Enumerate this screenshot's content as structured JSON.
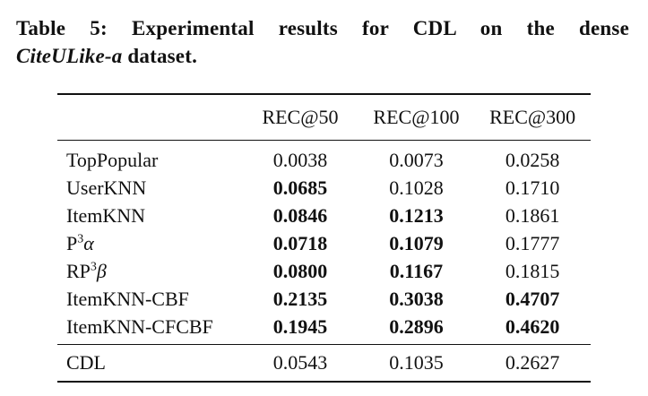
{
  "caption": {
    "prefix": "Table 5: Experimental results for CDL on the dense",
    "dataset_name": "CiteULike-a",
    "suffix": " dataset."
  },
  "table": {
    "headers": [
      "",
      "REC@50",
      "REC@100",
      "REC@300"
    ],
    "rows": [
      {
        "model": "TopPopular",
        "values": [
          "0.0038",
          "0.0073",
          "0.0258"
        ],
        "bold": [
          false,
          false,
          false
        ]
      },
      {
        "model": "UserKNN",
        "values": [
          "0.0685",
          "0.1028",
          "0.1710"
        ],
        "bold": [
          true,
          false,
          false
        ]
      },
      {
        "model": "ItemKNN",
        "values": [
          "0.0846",
          "0.1213",
          "0.1861"
        ],
        "bold": [
          true,
          true,
          false
        ]
      },
      {
        "model_base": "P",
        "model_sup": "3",
        "model_greek": "α",
        "values": [
          "0.0718",
          "0.1079",
          "0.1777"
        ],
        "bold": [
          true,
          true,
          false
        ]
      },
      {
        "model_base": "RP",
        "model_sup": "3",
        "model_greek": "β",
        "values": [
          "0.0800",
          "0.1167",
          "0.1815"
        ],
        "bold": [
          true,
          true,
          false
        ]
      },
      {
        "model": "ItemKNN-CBF",
        "values": [
          "0.2135",
          "0.3038",
          "0.4707"
        ],
        "bold": [
          true,
          true,
          true
        ]
      },
      {
        "model": "ItemKNN-CFCBF",
        "values": [
          "0.1945",
          "0.2896",
          "0.4620"
        ],
        "bold": [
          true,
          true,
          true
        ]
      }
    ],
    "baseline": {
      "model": "CDL",
      "values": [
        "0.0543",
        "0.1035",
        "0.2627"
      ]
    }
  }
}
